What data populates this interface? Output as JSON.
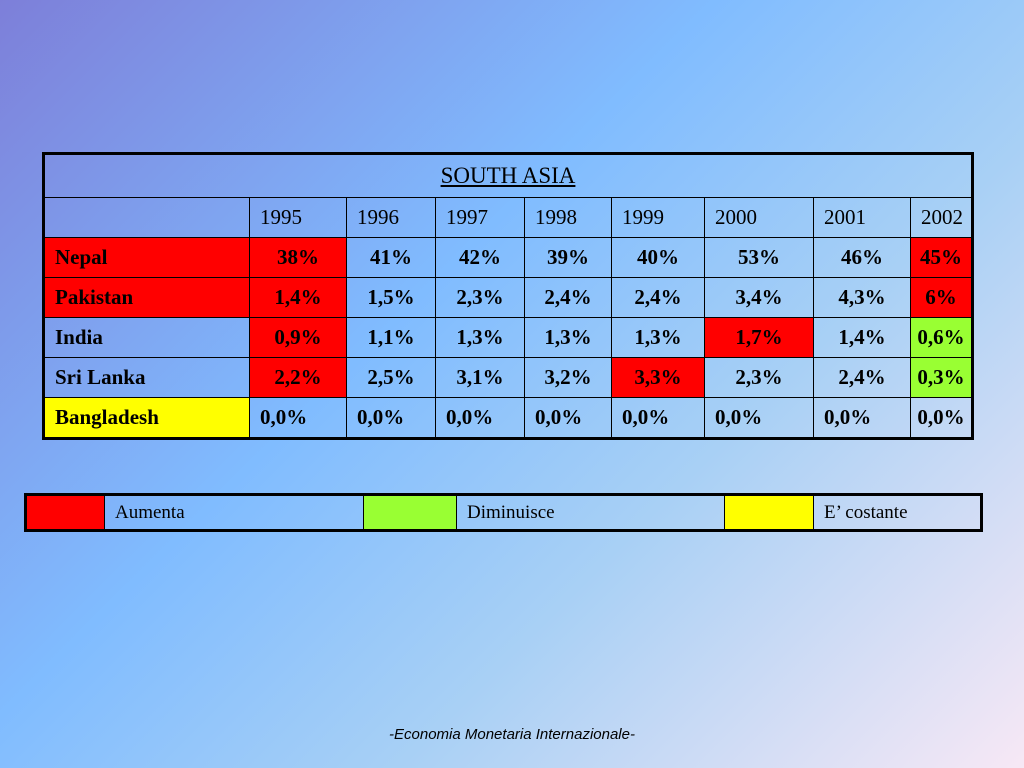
{
  "table": {
    "title": "SOUTH ASIA",
    "years": [
      "1995",
      "1996",
      "1997",
      "1998",
      "1999",
      "2000",
      "2001",
      "2002"
    ],
    "rows": [
      {
        "country": "Nepal",
        "values": [
          "38%",
          "41%",
          "42%",
          "39%",
          "40%",
          "53%",
          "46%",
          "45%"
        ]
      },
      {
        "country": "Pakistan",
        "values": [
          "1,4%",
          "1,5%",
          "2,3%",
          "2,4%",
          "2,4%",
          "3,4%",
          "4,3%",
          "6%"
        ]
      },
      {
        "country": "India",
        "values": [
          "0,9%",
          "1,1%",
          "1,3%",
          "1,3%",
          "1,3%",
          "1,7%",
          "1,4%",
          "0,6%"
        ]
      },
      {
        "country": "Sri Lanka",
        "values": [
          "2,2%",
          "2,5%",
          "3,1%",
          "3,2%",
          "3,3%",
          "2,3%",
          "2,4%",
          "0,3%"
        ]
      },
      {
        "country": "Bangladesh",
        "values": [
          "0,0%",
          "0,0%",
          "0,0%",
          "0,0%",
          "0,0%",
          "0,0%",
          "0,0%",
          "0,0%"
        ]
      }
    ]
  },
  "colors": {
    "increase": "#ff0000",
    "decrease": "#99ff33",
    "constant": "#ffff00"
  },
  "legend": {
    "increase_label": "Aumenta",
    "decrease_label": "Diminuisce",
    "constant_label": "E’ costante"
  },
  "footer": "-Economia Monetaria Internazionale-"
}
